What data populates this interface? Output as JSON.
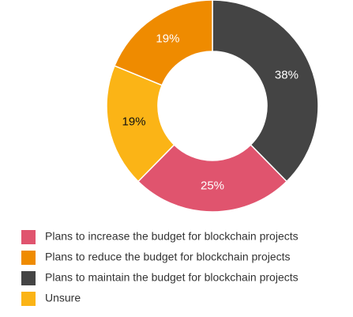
{
  "chart_data": {
    "type": "donut",
    "categories": [
      "Plans to maintain the budget for blockchain projects",
      "Plans to increase the budget for blockchain projects",
      "Unsure",
      "Plans to reduce the budget for blockchain projects"
    ],
    "values": [
      38,
      25,
      19,
      19
    ],
    "value_labels": [
      "38%",
      "25%",
      "19%",
      "19%"
    ],
    "colors": [
      "#444444",
      "#e0546e",
      "#fbb416",
      "#ef8b00"
    ],
    "label_colors": [
      "#ffffff",
      "#ffffff",
      "#111111",
      "#ffffff"
    ]
  }
}
